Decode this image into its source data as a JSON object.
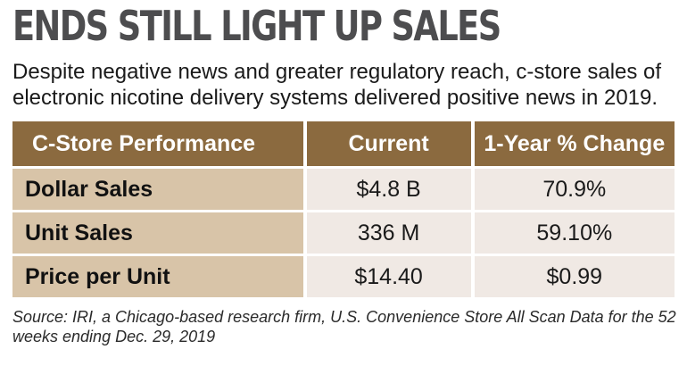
{
  "title": "ENDS STILL LIGHT UP SALES",
  "subtitle": "Despite negative news and greater regulatory reach, c-store sales of electronic nicotine delivery systems delivered positive news in 2019.",
  "colors": {
    "header_bg": "#8b6a3f",
    "label_bg": "#d8c4a8",
    "value_bg": "#f0e9e4",
    "title_color": "#4d4d4f"
  },
  "chart_data": {
    "type": "table",
    "columns": [
      "C-Store Performance",
      "Current",
      "1-Year % Change"
    ],
    "rows": [
      [
        "Dollar Sales",
        "$4.8 B",
        "70.9%"
      ],
      [
        "Unit Sales",
        "336 M",
        "59.10%"
      ],
      [
        "Price per Unit",
        "$14.40",
        "$0.99"
      ]
    ]
  },
  "source": "Source: IRI, a Chicago-based research firm, U.S. Convenience Store All Scan Data for the 52 weeks ending Dec. 29, 2019"
}
